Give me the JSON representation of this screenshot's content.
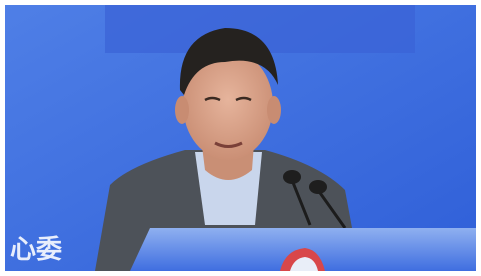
{
  "background_text": "心委"
}
